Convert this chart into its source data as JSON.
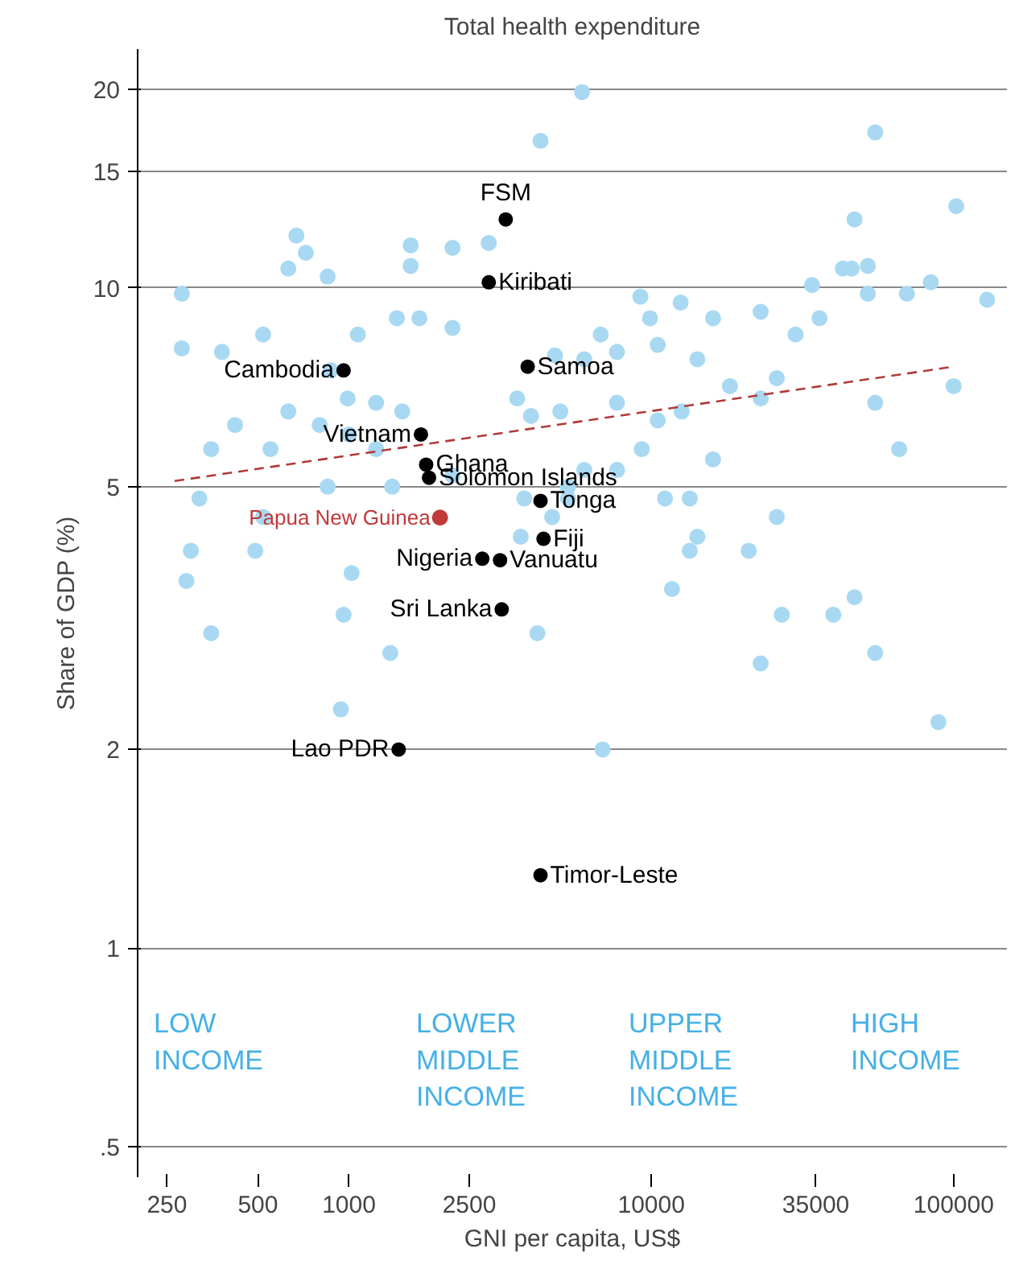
{
  "chart_data": {
    "type": "scatter",
    "title": "Total health expenditure",
    "xlabel": "GNI per capita, US$",
    "ylabel": "Share of GDP (%)",
    "log": "xy",
    "grid": "y",
    "marker": "circle",
    "xlim": [
      200,
      150000
    ],
    "ylim": [
      0.45,
      23
    ],
    "xticks": [
      250,
      500,
      1000,
      2500,
      10000,
      35000,
      100000
    ],
    "yticks": [
      {
        "value": 0.5,
        "label": ".5"
      },
      1,
      2,
      5,
      10,
      15,
      20
    ],
    "annotations": [
      "LOW\nINCOME",
      "LOWER\nMIDDLE\nINCOME",
      "UPPER\nMIDDLE\nINCOME",
      "HIGH\nINCOME"
    ],
    "series": [
      {
        "color": "#a9d9f2",
        "x": [
          5900,
          4300,
          55000,
          102000,
          47000,
          52000,
          280,
          280,
          380,
          670,
          720,
          630,
          850,
          520,
          870,
          630,
          990,
          1230,
          800,
          1500,
          1070,
          1440,
          1710,
          2200,
          1600,
          1600,
          2900,
          2200,
          320,
          300,
          290,
          350,
          490,
          350,
          420,
          550,
          520,
          1020,
          960,
          1370,
          940,
          1000,
          1230,
          2200,
          1390,
          850,
          3600,
          5000,
          4000,
          6000,
          4800,
          7700,
          9900,
          9200,
          12500,
          10500,
          14200,
          18200,
          23000,
          26000,
          36000,
          34000,
          43000,
          46000,
          52000,
          70000,
          84000,
          129000,
          30000,
          23000,
          16000,
          6800,
          7700,
          10500,
          12600,
          16000,
          13400,
          11100,
          9300,
          7700,
          6000,
          5300,
          3700,
          3800,
          5300,
          4700,
          14200,
          13400,
          11700,
          27000,
          40000,
          23000,
          55000,
          89000,
          6900,
          47000,
          66000,
          55000,
          100000,
          4200,
          26000,
          21000
        ],
        "values": [
          19.8,
          16.7,
          17.2,
          13.3,
          12.7,
          10.8,
          9.8,
          8.1,
          8.0,
          12.0,
          11.3,
          10.7,
          10.4,
          8.5,
          7.5,
          6.5,
          6.8,
          6.7,
          6.2,
          6.5,
          8.5,
          9.0,
          9.0,
          8.7,
          11.6,
          10.8,
          11.7,
          11.5,
          4.8,
          4.0,
          3.6,
          3.0,
          4.0,
          5.7,
          6.2,
          5.7,
          4.5,
          3.7,
          3.2,
          2.8,
          2.3,
          6.0,
          5.7,
          5.2,
          5.0,
          5.0,
          6.8,
          6.5,
          6.4,
          7.8,
          7.9,
          8.0,
          9.0,
          9.7,
          9.5,
          8.2,
          7.8,
          7.1,
          6.8,
          7.3,
          9.0,
          10.1,
          10.7,
          10.7,
          9.8,
          9.8,
          10.2,
          9.6,
          8.5,
          9.2,
          9.0,
          8.5,
          6.7,
          6.3,
          6.5,
          5.5,
          4.8,
          4.8,
          5.7,
          5.3,
          5.3,
          5.0,
          4.2,
          4.8,
          4.8,
          4.5,
          4.2,
          4.0,
          3.5,
          3.2,
          3.2,
          2.7,
          2.8,
          2.2,
          2.0,
          3.4,
          5.7,
          6.7,
          7.1,
          3.0,
          4.5,
          4.0
        ]
      },
      {
        "type": "line",
        "color": "#b03a3a",
        "line_style": "dashed",
        "marker": "none",
        "x": [
          265,
          100000
        ],
        "values": [
          5.1,
          7.6
        ]
      },
      {
        "color": "#000000",
        "x": [
          3300,
          2900,
          960,
          3900,
          1730,
          1800,
          1840,
          4300,
          4400,
          2760,
          3160,
          3200,
          1460,
          4300
        ],
        "values": [
          12.7,
          10.2,
          7.5,
          7.6,
          6.0,
          5.4,
          5.16,
          4.76,
          4.17,
          3.89,
          3.87,
          3.26,
          2.0,
          1.29
        ],
        "value_labels": [
          "FSM",
          "Kiribati",
          "Cambodia",
          "Samoa",
          "Vietnam",
          "Ghana",
          "Solomon Islands",
          "Tonga",
          "Fiji",
          "Nigeria",
          "Vanuatu",
          "Sri Lanka",
          "Lao PDR",
          "Timor-Leste"
        ]
      },
      {
        "color": "#c0393b",
        "x": [
          2000
        ],
        "values": [
          4.49
        ],
        "value_labels": [
          "Papua New Guinea"
        ]
      }
    ]
  }
}
